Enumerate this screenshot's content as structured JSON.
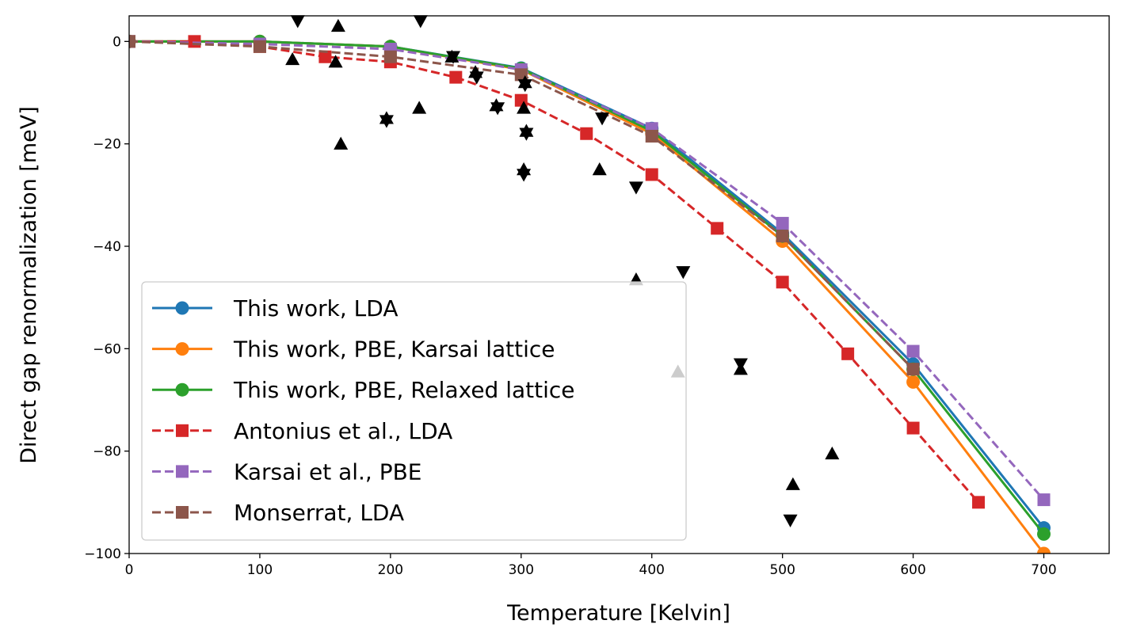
{
  "chart_data": {
    "type": "line",
    "title": "",
    "xlabel": "Temperature [Kelvin]",
    "ylabel": "Direct gap renormalization [meV]",
    "xlim": [
      0,
      750
    ],
    "ylim": [
      -100,
      5
    ],
    "xticks": [
      0,
      100,
      200,
      300,
      400,
      500,
      600,
      700
    ],
    "yticks": [
      0,
      -20,
      -40,
      -60,
      -80,
      -100
    ],
    "xtick_labels": [
      "0",
      "100",
      "200",
      "300",
      "400",
      "500",
      "600",
      "700"
    ],
    "ytick_labels": [
      "0",
      "−20",
      "−40",
      "−60",
      "−80",
      "−100"
    ],
    "grid": false,
    "legend_position": "lower-left",
    "series": [
      {
        "name": "This work, LDA",
        "color": "#1f77b4",
        "marker": "circle",
        "line_style": "solid",
        "x": [
          0,
          100,
          200,
          300,
          400,
          500,
          600,
          700
        ],
        "y": [
          0,
          0,
          -1,
          -5.2,
          -17,
          -37.5,
          -63,
          -95
        ]
      },
      {
        "name": "This work, PBE, Karsai lattice",
        "color": "#ff7f0e",
        "marker": "circle",
        "line_style": "solid",
        "x": [
          0,
          100,
          200,
          300,
          400,
          500,
          600,
          700
        ],
        "y": [
          0,
          0,
          -1,
          -5.5,
          -18,
          -39,
          -66.5,
          -100
        ]
      },
      {
        "name": "This work, PBE, Relaxed lattice",
        "color": "#2ca02c",
        "marker": "circle",
        "line_style": "solid",
        "x": [
          0,
          100,
          200,
          300,
          400,
          500,
          600,
          700
        ],
        "y": [
          0,
          0,
          -1,
          -5.3,
          -17.5,
          -38,
          -64,
          -96.2
        ]
      },
      {
        "name": "Antonius et al., LDA",
        "color": "#d62728",
        "marker": "square",
        "line_style": "dashed",
        "x": [
          0,
          50,
          100,
          150,
          200,
          250,
          300,
          350,
          400,
          450,
          500,
          550,
          600,
          650
        ],
        "y": [
          0,
          0,
          -1,
          -3,
          -4,
          -7,
          -11.5,
          -18,
          -26,
          -36.5,
          -47,
          -61,
          -75.5,
          -90
        ]
      },
      {
        "name": "Karsai et al., PBE",
        "color": "#9467bd",
        "marker": "square",
        "line_style": "dashed",
        "x": [
          0,
          100,
          200,
          300,
          400,
          500,
          600,
          700
        ],
        "y": [
          0,
          -0.5,
          -1.5,
          -5.5,
          -17,
          -35.5,
          -60.5,
          -89.5
        ]
      },
      {
        "name": "Monserrat, LDA",
        "color": "#8c564b",
        "marker": "square",
        "line_style": "dashed",
        "x": [
          0,
          100,
          200,
          300,
          400,
          500,
          600
        ],
        "y": [
          0,
          -1,
          -3,
          -6.5,
          -18.5,
          -38,
          -64
        ]
      }
    ],
    "scatter_series": [
      {
        "marker": "triangle-up",
        "color": "#000000",
        "points": [
          [
            125,
            -3.5
          ],
          [
            158,
            -4
          ],
          [
            160,
            3
          ],
          [
            162,
            -20
          ],
          [
            197,
            -15
          ],
          [
            222,
            -13
          ],
          [
            247,
            -3
          ],
          [
            265,
            -6
          ],
          [
            281,
            -12.5
          ],
          [
            302,
            -13
          ],
          [
            302,
            -25
          ],
          [
            303,
            -8
          ],
          [
            304,
            -17.5
          ],
          [
            360,
            -25
          ],
          [
            388,
            -46.5
          ],
          [
            508,
            -86.5
          ],
          [
            538,
            -80.5
          ],
          [
            468,
            -64
          ],
          [
            420,
            -64.5
          ]
        ]
      },
      {
        "marker": "triangle-down",
        "color": "#000000",
        "points": [
          [
            129,
            4
          ],
          [
            197,
            -15.5
          ],
          [
            223,
            4
          ],
          [
            248,
            -3
          ],
          [
            266,
            -7
          ],
          [
            282,
            -13
          ],
          [
            302,
            -26
          ],
          [
            303,
            -8.5
          ],
          [
            304,
            -18
          ],
          [
            362,
            -15
          ],
          [
            388,
            -28.5
          ],
          [
            424,
            -45
          ],
          [
            468,
            -63
          ],
          [
            506,
            -93.5
          ]
        ]
      }
    ]
  }
}
